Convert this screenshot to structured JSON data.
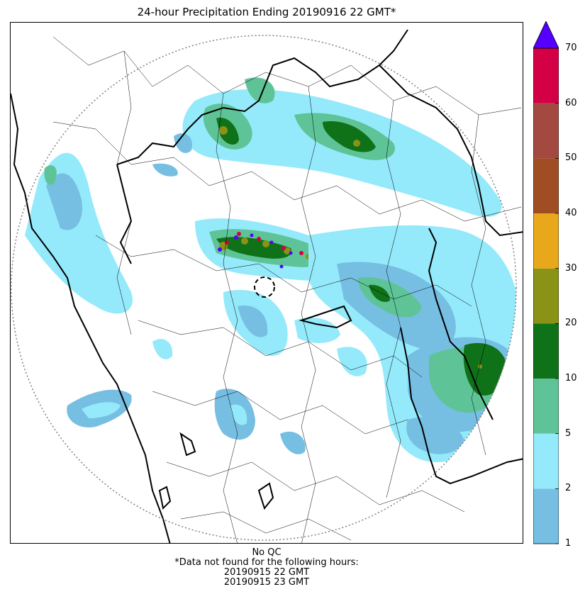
{
  "title": "24-hour Precipitation Ending 20190916 22 GMT*",
  "footer": {
    "qc": "No QC",
    "missing_note": "*Data not found for the following hours:",
    "missing_hours": [
      "20190915 22 GMT",
      "20190915 23 GMT"
    ]
  },
  "colorbar": {
    "ticks": [
      "1",
      "2",
      "5",
      "10",
      "20",
      "30",
      "40",
      "50",
      "60",
      "70"
    ],
    "bin_colors": [
      "#76bfe3",
      "#94eafa",
      "#5ec497",
      "#0f7218",
      "#8a9315",
      "#e9a81b",
      "#a14d24",
      "#a3493f",
      "#d40045"
    ],
    "extend_color": "#5500ff"
  },
  "map": {
    "boundary_color": "#000000",
    "range_ring_color": "#808080",
    "radar_marker": "dashed-circle"
  }
}
